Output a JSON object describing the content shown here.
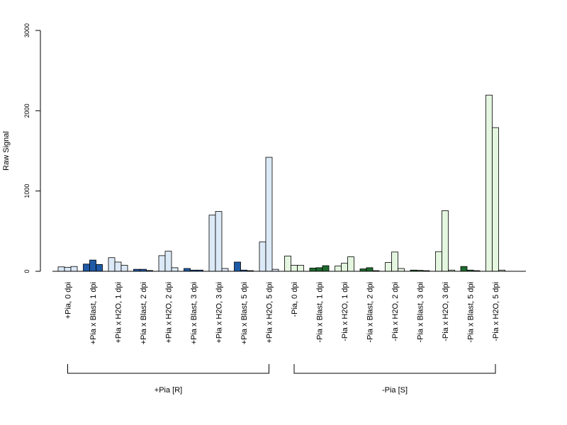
{
  "chart_data": {
    "type": "bar",
    "ylabel": "Raw Signal",
    "xlabel": "",
    "title": "",
    "ylim": [
      0,
      3000
    ],
    "yticks": [
      0,
      1000,
      2000,
      3000
    ],
    "grid": false,
    "legend": "none",
    "categories": [
      "+Pia, 0 dpi",
      "+Pia x Blast, 1 dpi",
      "+Pia x H2O, 1 dpi",
      "+Pia x Blast, 2 dpi",
      "+Pia x H2O, 2 dpi",
      "+Pia x Blast, 3 dpi",
      "+Pia x H2O, 3 dpi",
      "+Pia x Blast, 5 dpi",
      "+Pia x H2O, 5 dpi",
      "-Pia, 0 dpi",
      "-Pia x Blast, 1 dpi",
      "-Pia x H2O, 1 dpi",
      "-Pia x Blast, 2 dpi",
      "-Pia x H2O, 2 dpi",
      "-Pia x Blast, 3 dpi",
      "-Pia x H2O, 3 dpi",
      "-Pia x Blast, 5 dpi",
      "-Pia x H2O, 5 dpi"
    ],
    "replicate_values": [
      [
        55,
        50,
        60
      ],
      [
        90,
        140,
        85
      ],
      [
        170,
        115,
        75
      ],
      [
        25,
        25,
        10
      ],
      [
        195,
        250,
        45
      ],
      [
        35,
        15,
        15
      ],
      [
        700,
        745,
        35
      ],
      [
        115,
        15,
        8
      ],
      [
        365,
        1420,
        25
      ],
      [
        190,
        75,
        75
      ],
      [
        40,
        45,
        70
      ],
      [
        65,
        100,
        180
      ],
      [
        30,
        45,
        8
      ],
      [
        110,
        240,
        35
      ],
      [
        15,
        12,
        8
      ],
      [
        245,
        755,
        15
      ],
      [
        60,
        15,
        8
      ],
      [
        2195,
        1790,
        15
      ]
    ],
    "bar_colors": [
      "#dce9f7",
      "#1f5aa6",
      "#dce9f7",
      "#1f5aa6",
      "#dce9f7",
      "#1f5aa6",
      "#dce9f7",
      "#1f5aa6",
      "#dce9f7",
      "#e4f6df",
      "#1e6b2e",
      "#e4f6df",
      "#1e6b2e",
      "#e4f6df",
      "#1e6b2e",
      "#e4f6df",
      "#1e6b2e",
      "#e4f6df"
    ],
    "groups": [
      {
        "label": "+Pia [R]",
        "from": 0,
        "to": 8
      },
      {
        "label": "-Pia [S]",
        "from": 9,
        "to": 17
      }
    ]
  }
}
